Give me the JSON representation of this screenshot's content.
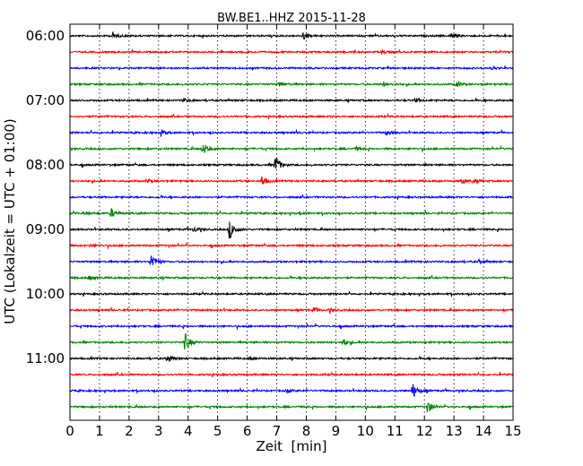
{
  "chart_data": {
    "type": "line",
    "title": "BW.BE1..HHZ 2015-11-28",
    "xlabel": "Zeit  [min]",
    "ylabel": "UTC (Lokalzeit = UTC + 01:00)",
    "xlim": [
      0,
      15
    ],
    "x_ticks": [
      "0",
      "1",
      "2",
      "3",
      "4",
      "5",
      "6",
      "7",
      "8",
      "9",
      "10",
      "11",
      "12",
      "13",
      "14",
      "15"
    ],
    "y_tick_labels": [
      "06:00",
      "07:00",
      "08:00",
      "09:00",
      "10:00",
      "11:00"
    ],
    "trace_interval_min": 15,
    "grid": "vertical dotted",
    "trace_colors": [
      "#000000",
      "#ff0000",
      "#0000ff",
      "#008000"
    ],
    "series": [
      {
        "start": "06:00",
        "events": [
          {
            "t": 1.45,
            "amp": 0.35
          },
          {
            "t": 7.9,
            "amp": 0.4
          },
          {
            "t": 12.9,
            "amp": 0.3
          }
        ]
      },
      {
        "start": "06:15",
        "events": [
          {
            "t": 10.55,
            "amp": 0.2
          }
        ]
      },
      {
        "start": "06:30",
        "events": [
          {
            "t": 14.3,
            "amp": 0.15
          }
        ]
      },
      {
        "start": "06:45",
        "events": [
          {
            "t": 7.1,
            "amp": 0.3
          },
          {
            "t": 10.6,
            "amp": 0.2
          },
          {
            "t": 13.1,
            "amp": 0.3
          }
        ]
      },
      {
        "start": "07:00",
        "events": [
          {
            "t": 3.85,
            "amp": 0.2
          },
          {
            "t": 11.7,
            "amp": 0.2
          }
        ]
      },
      {
        "start": "07:15",
        "events": []
      },
      {
        "start": "07:30",
        "events": [
          {
            "t": 3.1,
            "amp": 0.3
          },
          {
            "t": 10.7,
            "amp": 0.2
          }
        ]
      },
      {
        "start": "07:45",
        "events": [
          {
            "t": 4.5,
            "amp": 0.7
          },
          {
            "t": 9.7,
            "amp": 0.15
          }
        ]
      },
      {
        "start": "08:00",
        "events": [
          {
            "t": 6.95,
            "amp": 1.0
          }
        ]
      },
      {
        "start": "08:15",
        "events": [
          {
            "t": 2.6,
            "amp": 0.2
          },
          {
            "t": 6.5,
            "amp": 0.6
          },
          {
            "t": 13.25,
            "amp": 0.3
          },
          {
            "t": 13.65,
            "amp": 0.25
          }
        ]
      },
      {
        "start": "08:30",
        "events": []
      },
      {
        "start": "08:45",
        "events": [
          {
            "t": 0.5,
            "amp": 0.2
          },
          {
            "t": 1.4,
            "amp": 0.5
          },
          {
            "t": 7.8,
            "amp": 0.15
          }
        ]
      },
      {
        "start": "09:00",
        "events": [
          {
            "t": 4.2,
            "amp": 0.3
          },
          {
            "t": 5.4,
            "amp": 1.1
          }
        ]
      },
      {
        "start": "09:15",
        "events": [
          {
            "t": 0.7,
            "amp": 0.15
          }
        ]
      },
      {
        "start": "09:30",
        "events": [
          {
            "t": 2.75,
            "amp": 0.9
          },
          {
            "t": 13.85,
            "amp": 0.2
          }
        ]
      },
      {
        "start": "09:45",
        "events": [
          {
            "t": 0.65,
            "amp": 0.2
          }
        ]
      },
      {
        "start": "10:00",
        "events": []
      },
      {
        "start": "10:15",
        "events": [
          {
            "t": 8.25,
            "amp": 0.2
          },
          {
            "t": 8.8,
            "amp": 0.2
          }
        ]
      },
      {
        "start": "10:30",
        "events": []
      },
      {
        "start": "10:45",
        "events": [
          {
            "t": 3.9,
            "amp": 1.0
          },
          {
            "t": 9.25,
            "amp": 0.4
          }
        ]
      },
      {
        "start": "11:00",
        "events": [
          {
            "t": 3.3,
            "amp": 0.45
          },
          {
            "t": 6.1,
            "amp": 0.15
          }
        ]
      },
      {
        "start": "11:15",
        "events": []
      },
      {
        "start": "11:30",
        "events": [
          {
            "t": 7.35,
            "amp": 0.2
          },
          {
            "t": 11.6,
            "amp": 0.85
          }
        ]
      },
      {
        "start": "11:45",
        "events": [
          {
            "t": 12.1,
            "amp": 0.7
          }
        ]
      }
    ]
  }
}
